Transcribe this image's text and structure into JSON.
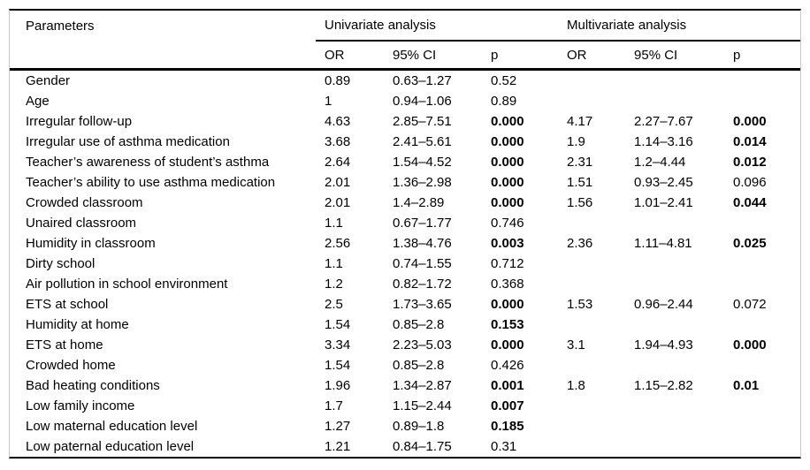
{
  "colors": {
    "rule": "#000000",
    "side_border": "#c8c8c8",
    "text": "#000000",
    "background": "#ffffff"
  },
  "table": {
    "header": {
      "parameters": "Parameters",
      "groups": [
        {
          "label": "Univariate analysis"
        },
        {
          "label": "Multivariate analysis"
        }
      ],
      "subheaders": [
        "OR",
        "95% CI",
        "p"
      ]
    },
    "rows": [
      {
        "label": "Gender",
        "uni": {
          "or": "0.89",
          "ci": "0.63–1.27",
          "p": "0.52",
          "p_bold": false
        },
        "multi": {
          "or": "",
          "ci": "",
          "p": "",
          "p_bold": false
        }
      },
      {
        "label": "Age",
        "uni": {
          "or": "1",
          "ci": "0.94–1.06",
          "p": "0.89",
          "p_bold": false
        },
        "multi": {
          "or": "",
          "ci": "",
          "p": "",
          "p_bold": false
        }
      },
      {
        "label": "Irregular follow-up",
        "uni": {
          "or": "4.63",
          "ci": "2.85–7.51",
          "p": "0.000",
          "p_bold": true
        },
        "multi": {
          "or": "4.17",
          "ci": "2.27–7.67",
          "p": "0.000",
          "p_bold": true
        }
      },
      {
        "label": "Irregular use of asthma medication",
        "uni": {
          "or": "3.68",
          "ci": "2.41–5.61",
          "p": "0.000",
          "p_bold": true
        },
        "multi": {
          "or": "1.9",
          "ci": "1.14–3.16",
          "p": "0.014",
          "p_bold": true
        }
      },
      {
        "label": "Teacher’s awareness of student’s asthma",
        "uni": {
          "or": "2.64",
          "ci": "1.54–4.52",
          "p": "0.000",
          "p_bold": true
        },
        "multi": {
          "or": "2.31",
          "ci": "1.2–4.44",
          "p": "0.012",
          "p_bold": true
        }
      },
      {
        "label": "Teacher’s ability to use asthma medication",
        "uni": {
          "or": "2.01",
          "ci": "1.36–2.98",
          "p": "0.000",
          "p_bold": true
        },
        "multi": {
          "or": "1.51",
          "ci": "0.93–2.45",
          "p": "0.096",
          "p_bold": false
        }
      },
      {
        "label": "Crowded classroom",
        "uni": {
          "or": "2.01",
          "ci": "1.4–2.89",
          "p": "0.000",
          "p_bold": true
        },
        "multi": {
          "or": "1.56",
          "ci": "1.01–2.41",
          "p": "0.044",
          "p_bold": true
        }
      },
      {
        "label": "Unaired classroom",
        "uni": {
          "or": "1.1",
          "ci": "0.67–1.77",
          "p": "0.746",
          "p_bold": false
        },
        "multi": {
          "or": "",
          "ci": "",
          "p": "",
          "p_bold": false
        }
      },
      {
        "label": "Humidity in classroom",
        "uni": {
          "or": "2.56",
          "ci": "1.38–4.76",
          "p": "0.003",
          "p_bold": true
        },
        "multi": {
          "or": "2.36",
          "ci": "1.11–4.81",
          "p": "0.025",
          "p_bold": true
        }
      },
      {
        "label": "Dirty school",
        "uni": {
          "or": "1.1",
          "ci": "0.74–1.55",
          "p": "0.712",
          "p_bold": false
        },
        "multi": {
          "or": "",
          "ci": "",
          "p": "",
          "p_bold": false
        }
      },
      {
        "label": "Air pollution in school environment",
        "uni": {
          "or": "1.2",
          "ci": "0.82–1.72",
          "p": "0.368",
          "p_bold": false
        },
        "multi": {
          "or": "",
          "ci": "",
          "p": "",
          "p_bold": false
        }
      },
      {
        "label": "ETS at school",
        "uni": {
          "or": "2.5",
          "ci": "1.73–3.65",
          "p": "0.000",
          "p_bold": true
        },
        "multi": {
          "or": "1.53",
          "ci": "0.96–2.44",
          "p": "0.072",
          "p_bold": false
        }
      },
      {
        "label": "Humidity at home",
        "uni": {
          "or": "1.54",
          "ci": "0.85–2.8",
          "p": "0.153",
          "p_bold": true
        },
        "multi": {
          "or": "",
          "ci": "",
          "p": "",
          "p_bold": false
        }
      },
      {
        "label": "ETS at home",
        "uni": {
          "or": "3.34",
          "ci": "2.23–5.03",
          "p": "0.000",
          "p_bold": true
        },
        "multi": {
          "or": "3.1",
          "ci": "1.94–4.93",
          "p": "0.000",
          "p_bold": true
        }
      },
      {
        "label": "Crowded home",
        "uni": {
          "or": "1.54",
          "ci": "0.85–2.8",
          "p": "0.426",
          "p_bold": false
        },
        "multi": {
          "or": "",
          "ci": "",
          "p": "",
          "p_bold": false
        }
      },
      {
        "label": "Bad heating conditions",
        "uni": {
          "or": "1.96",
          "ci": "1.34–2.87",
          "p": "0.001",
          "p_bold": true
        },
        "multi": {
          "or": "1.8",
          "ci": "1.15–2.82",
          "p": "0.01",
          "p_bold": true
        }
      },
      {
        "label": "Low family income",
        "uni": {
          "or": "1.7",
          "ci": "1.15–2.44",
          "p": "0.007",
          "p_bold": true
        },
        "multi": {
          "or": "",
          "ci": "",
          "p": "",
          "p_bold": false
        }
      },
      {
        "label": "Low maternal education level",
        "uni": {
          "or": "1.27",
          "ci": "0.89–1.8",
          "p": "0.185",
          "p_bold": true
        },
        "multi": {
          "or": "",
          "ci": "",
          "p": "",
          "p_bold": false
        }
      },
      {
        "label": "Low paternal education level",
        "uni": {
          "or": "1.21",
          "ci": "0.84–1.75",
          "p": "0.31",
          "p_bold": false
        },
        "multi": {
          "or": "",
          "ci": "",
          "p": "",
          "p_bold": false
        }
      }
    ]
  }
}
